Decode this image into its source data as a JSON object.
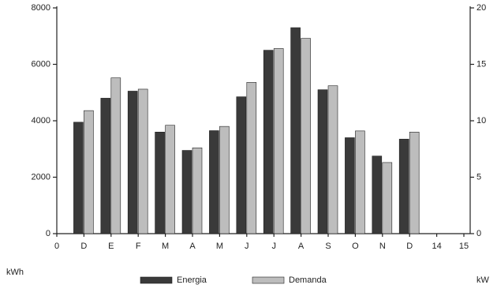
{
  "chart_data": {
    "type": "bar",
    "categories": [
      "0",
      "D",
      "E",
      "F",
      "M",
      "A",
      "M",
      "J",
      "J",
      "A",
      "S",
      "O",
      "N",
      "D",
      "14",
      "15"
    ],
    "series": [
      {
        "name": "Energia",
        "color": "#3a3a3a",
        "values": [
          null,
          3950,
          4800,
          5050,
          3600,
          2950,
          3650,
          4850,
          6500,
          7300,
          5100,
          3400,
          2750,
          3350,
          null,
          null
        ]
      },
      {
        "name": "Demanda",
        "color": "#bdbdbd",
        "axis": "y2",
        "values": [
          null,
          10.9,
          13.8,
          12.8,
          9.6,
          7.6,
          9.5,
          13.4,
          16.4,
          17.3,
          13.1,
          9.1,
          6.3,
          9.0,
          null,
          null
        ]
      }
    ],
    "ylabel": "kWh",
    "y2label": "kW",
    "ylim": [
      0,
      8000
    ],
    "yticks": [
      0,
      2000,
      4000,
      6000,
      8000
    ],
    "y2lim": [
      0,
      20
    ],
    "y2ticks": [
      0,
      5,
      10,
      15,
      20
    ],
    "legend": "bottom"
  }
}
